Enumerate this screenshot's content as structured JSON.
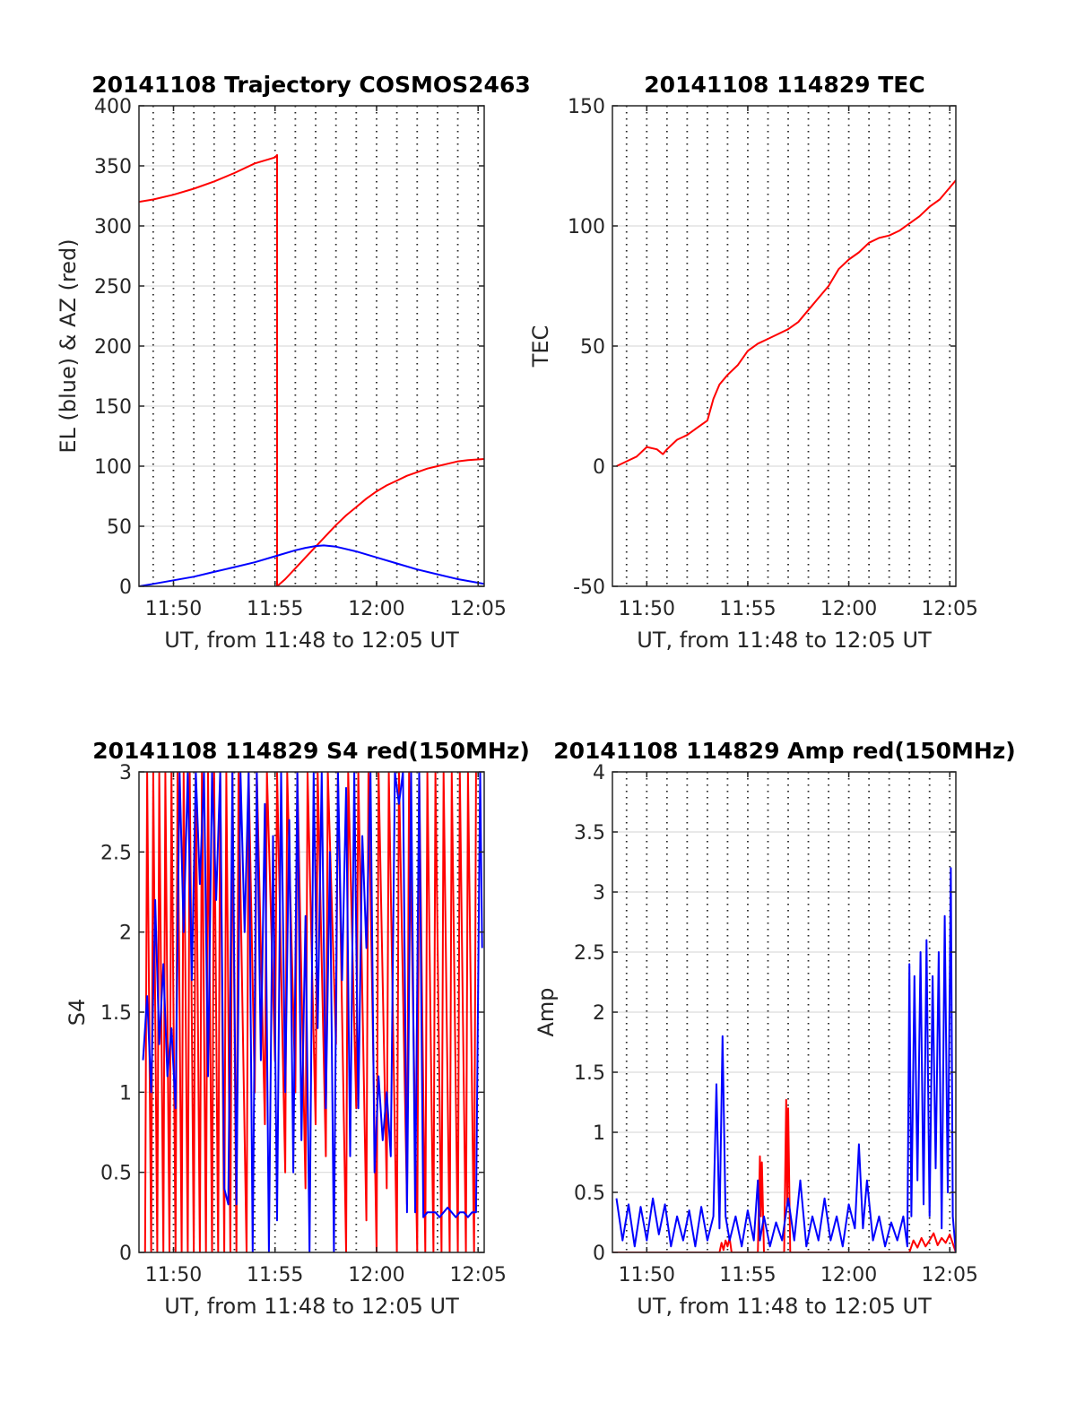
{
  "chart_data": [
    {
      "type": "line",
      "title": "20141108 Trajectory COSMOS2463",
      "xlabel": "UT, from 11:48 to 12:05 UT",
      "ylabel": "EL (blue) & AZ (red)",
      "xlim": [
        708.3,
        725.3
      ],
      "ylim": [
        0,
        400
      ],
      "x_ticks": [
        710,
        715,
        720,
        725
      ],
      "x_tick_labels": [
        "11:50",
        "11:55",
        "12:00",
        "12:05"
      ],
      "y_ticks": [
        0,
        50,
        100,
        150,
        200,
        250,
        300,
        350,
        400
      ],
      "y_tick_labels": [
        "0",
        "50",
        "100",
        "150",
        "200",
        "250",
        "300",
        "350",
        "400"
      ],
      "vertical_dotted_x": [
        709,
        710,
        711,
        712,
        713,
        714,
        715,
        716,
        717,
        718,
        719,
        720,
        721,
        722,
        723,
        724,
        725
      ],
      "grid": "horizontal major",
      "series": [
        {
          "color": "#ff0000",
          "x": [
            708.3,
            709,
            710,
            711,
            712,
            713,
            714,
            715,
            715.1,
            715.1,
            715.5,
            716,
            716.5,
            717,
            717.5,
            718,
            718.5,
            719,
            719.5,
            720,
            720.5,
            721,
            721.5,
            722,
            722.5,
            723,
            723.5,
            724,
            724.5,
            725.3
          ],
          "y": [
            320,
            322,
            326,
            331,
            337,
            344,
            352,
            357,
            359,
            0,
            6,
            15,
            24,
            33,
            42,
            51,
            59,
            66,
            73,
            79,
            84,
            88,
            92,
            95,
            98,
            100,
            102,
            104,
            105,
            106
          ]
        },
        {
          "color": "#0000ff",
          "x": [
            708.3,
            709,
            710,
            711,
            712,
            713,
            714,
            715,
            716,
            716.5,
            717,
            717.4,
            718,
            719,
            720,
            721,
            722,
            723,
            724,
            725.3
          ],
          "y": [
            0,
            2,
            5,
            8,
            12,
            16,
            20,
            25,
            30,
            32,
            33.5,
            34,
            33,
            29,
            24,
            19,
            14,
            10,
            6,
            2
          ]
        }
      ]
    },
    {
      "type": "line",
      "title": "20141108 114829 TEC",
      "xlabel": "UT, from 11:48 to 12:05 UT",
      "ylabel": "TEC",
      "xlim": [
        708.3,
        725.3
      ],
      "ylim": [
        -50,
        150
      ],
      "x_ticks": [
        710,
        715,
        720,
        725
      ],
      "x_tick_labels": [
        "11:50",
        "11:55",
        "12:00",
        "12:05"
      ],
      "y_ticks": [
        -50,
        0,
        50,
        100,
        150
      ],
      "y_tick_labels": [
        "-50",
        "0",
        "50",
        "100",
        "150"
      ],
      "vertical_dotted_x": [
        709,
        710,
        711,
        712,
        713,
        714,
        715,
        716,
        717,
        718,
        719,
        720,
        721,
        722,
        723,
        724,
        725
      ],
      "grid": "horizontal major",
      "series": [
        {
          "color": "#ff0000",
          "x": [
            708.5,
            709,
            709.5,
            710,
            710.5,
            710.8,
            711,
            711.5,
            712,
            712.5,
            713,
            713.3,
            713.6,
            714,
            714.5,
            715,
            715.5,
            716,
            716.5,
            717,
            717.5,
            718,
            718.5,
            719,
            719.5,
            720,
            720.5,
            721,
            721.5,
            722,
            722.5,
            723,
            723.5,
            724,
            724.5,
            725.3
          ],
          "y": [
            0,
            2,
            4,
            8,
            7,
            5,
            7,
            11,
            13,
            16,
            19,
            28,
            34,
            38,
            42,
            48,
            51,
            53,
            55,
            57,
            60,
            65,
            70,
            75,
            82,
            86,
            89,
            93,
            95,
            96,
            98,
            101,
            104,
            108,
            111,
            119
          ]
        }
      ]
    },
    {
      "type": "line",
      "title": "20141108 114829 S4 red(150MHz)",
      "xlabel": "UT, from 11:48 to 12:05 UT",
      "ylabel": "S4",
      "xlim": [
        708.3,
        725.3
      ],
      "ylim": [
        0,
        3
      ],
      "x_ticks": [
        710,
        715,
        720,
        725
      ],
      "x_tick_labels": [
        "11:50",
        "11:55",
        "12:00",
        "12:05"
      ],
      "y_ticks": [
        0,
        0.5,
        1,
        1.5,
        2,
        2.5,
        3
      ],
      "y_tick_labels": [
        "0",
        "0.5",
        "1",
        "1.5",
        "2",
        "2.5",
        "3"
      ],
      "vertical_dotted_x": [
        709,
        710,
        711,
        712,
        713,
        714,
        715,
        716,
        717,
        718,
        719,
        720,
        721,
        722,
        723,
        724,
        725
      ],
      "grid": "horizontal major",
      "series": [
        {
          "color": "#ff0000",
          "x": [
            708.6,
            708.7,
            708.9,
            709.0,
            709.2,
            709.3,
            709.5,
            709.6,
            709.8,
            709.9,
            710.1,
            710.2,
            710.4,
            710.5,
            710.7,
            710.8,
            711.0,
            711.1,
            711.3,
            711.4,
            711.6,
            711.7,
            711.9,
            712.0,
            712.2,
            712.3,
            712.5,
            712.6,
            712.8,
            712.9,
            713.1,
            713.2,
            713.6,
            713.7,
            714.0,
            714.1,
            714.5,
            714.6,
            715.0,
            715.1,
            715.5,
            715.6,
            716.0,
            716.1,
            716.5,
            716.6,
            717.0,
            717.1,
            717.5,
            717.6,
            718.0,
            718.1,
            718.5,
            718.6,
            719.0,
            719.1,
            719.5,
            719.6,
            720.0,
            720.1,
            720.5,
            720.6,
            721.0,
            721.1,
            721.5,
            721.6,
            722.0,
            722.1,
            722.4,
            722.5,
            722.8,
            722.9,
            723.2,
            723.3,
            723.6,
            723.7,
            724.0,
            724.1,
            724.4,
            724.5,
            724.8,
            724.9
          ],
          "y": [
            0,
            3,
            0,
            3,
            0,
            3,
            0,
            3,
            0,
            3,
            0,
            3,
            0,
            3,
            0,
            3,
            0,
            3,
            0,
            3,
            0,
            3,
            0,
            3,
            0,
            3,
            0,
            3,
            0,
            3,
            0,
            3,
            0,
            3,
            1.0,
            3,
            0.8,
            3,
            1.2,
            3,
            0.5,
            3,
            1.0,
            3,
            0.4,
            3,
            0.8,
            3,
            0.6,
            3,
            1.3,
            3,
            0,
            3,
            0.9,
            3,
            0.2,
            3,
            0,
            3,
            0.4,
            3,
            0,
            3,
            0.3,
            3,
            0,
            3,
            0,
            3,
            0,
            3,
            0,
            3,
            0,
            3,
            0,
            3,
            0,
            3,
            0,
            3
          ]
        },
        {
          "color": "#0000ff",
          "x": [
            708.5,
            708.7,
            708.9,
            709.1,
            709.3,
            709.5,
            709.7,
            709.9,
            710.1,
            710.3,
            710.5,
            710.7,
            710.9,
            711.1,
            711.3,
            711.5,
            711.7,
            711.9,
            712.1,
            712.3,
            712.5,
            712.7,
            712.9,
            713.1,
            713.3,
            713.5,
            713.7,
            713.9,
            714.1,
            714.3,
            714.5,
            714.7,
            714.9,
            715.1,
            715.3,
            715.5,
            715.7,
            715.9,
            716.1,
            716.3,
            716.5,
            716.7,
            716.9,
            717.1,
            717.3,
            717.5,
            717.7,
            717.9,
            718.1,
            718.3,
            718.5,
            718.7,
            718.9,
            719.1,
            719.3,
            719.5,
            719.7,
            719.9,
            720.1,
            720.3,
            720.5,
            720.7,
            720.9,
            721.1,
            721.3,
            721.5,
            721.7,
            721.9,
            722.1,
            722.3,
            722.5,
            722.7,
            722.9,
            723.1,
            723.3,
            723.5,
            723.7,
            723.9,
            724.1,
            724.3,
            724.5,
            724.7,
            724.9,
            725.1,
            725.2
          ],
          "y": [
            1.2,
            1.6,
            1.0,
            2.2,
            1.3,
            1.8,
            1.1,
            1.4,
            0.9,
            3.0,
            2.0,
            3.0,
            1.7,
            3.0,
            2.3,
            3.0,
            1.1,
            3.0,
            2.2,
            3.0,
            0.4,
            0.3,
            3.0,
            0.3,
            3.0,
            2.0,
            3.0,
            0,
            3.0,
            1.2,
            2.8,
            0,
            2.6,
            0.2,
            3.0,
            1.0,
            2.7,
            0.5,
            3.0,
            0.7,
            2.1,
            0,
            3.0,
            1.4,
            3.0,
            0.9,
            2.5,
            0,
            3.0,
            1.7,
            2.9,
            0.6,
            3.0,
            0.9,
            2.6,
            1.9,
            3.0,
            0.5,
            1.1,
            0.7,
            1.0,
            0.6,
            3.0,
            2.8,
            3.0,
            0.25,
            3.0,
            0.25,
            3.0,
            0.22,
            0.25,
            0.25,
            0.25,
            0.22,
            0.25,
            0.28,
            0.25,
            0.22,
            0.25,
            0.25,
            0.22,
            0.25,
            0.25,
            3.0,
            1.9
          ]
        }
      ]
    },
    {
      "type": "line",
      "title": "20141108 114829 Amp red(150MHz)",
      "xlabel": "UT, from 11:48 to 12:05 UT",
      "ylabel": "Amp",
      "xlim": [
        708.3,
        725.3
      ],
      "ylim": [
        0,
        4
      ],
      "x_ticks": [
        710,
        715,
        720,
        725
      ],
      "x_tick_labels": [
        "11:50",
        "11:55",
        "12:00",
        "12:05"
      ],
      "y_ticks": [
        0,
        0.5,
        1,
        1.5,
        2,
        2.5,
        3,
        3.5,
        4
      ],
      "y_tick_labels": [
        "0",
        "0.5",
        "1",
        "1.5",
        "2",
        "2.5",
        "3",
        "3.5",
        "4"
      ],
      "vertical_dotted_x": [
        709,
        710,
        711,
        712,
        713,
        714,
        715,
        716,
        717,
        718,
        719,
        720,
        721,
        722,
        723,
        724,
        725
      ],
      "grid": "horizontal major",
      "series": [
        {
          "color": "#ff0000",
          "x": [
            708.3,
            713.6,
            713.7,
            713.8,
            713.9,
            714.0,
            714.1,
            714.2,
            715.5,
            715.6,
            715.65,
            715.7,
            715.8,
            716.8,
            716.9,
            716.95,
            717.0,
            717.1,
            723.0,
            723.2,
            723.4,
            723.6,
            723.8,
            724.0,
            724.2,
            724.4,
            724.6,
            724.8,
            725.0,
            725.3
          ],
          "y": [
            0,
            0,
            0.08,
            0.02,
            0.1,
            0.05,
            0.12,
            0,
            0,
            0.8,
            0.3,
            0.75,
            0,
            0,
            1.27,
            0.4,
            1.2,
            0,
            0,
            0.1,
            0.04,
            0.12,
            0.05,
            0.1,
            0.16,
            0.06,
            0.12,
            0.08,
            0.15,
            0
          ]
        },
        {
          "color": "#0000ff",
          "x": [
            708.5,
            708.8,
            709.1,
            709.4,
            709.7,
            710.0,
            710.3,
            710.6,
            710.9,
            711.2,
            711.5,
            711.8,
            712.1,
            712.4,
            712.7,
            713.0,
            713.3,
            713.45,
            713.6,
            713.75,
            713.9,
            714.1,
            714.4,
            714.7,
            715.0,
            715.3,
            715.5,
            715.6,
            715.8,
            716.1,
            716.4,
            716.7,
            717.0,
            717.3,
            717.6,
            717.9,
            718.2,
            718.5,
            718.8,
            719.1,
            719.4,
            719.7,
            720.0,
            720.3,
            720.5,
            720.7,
            720.9,
            721.2,
            721.5,
            721.8,
            722.1,
            722.4,
            722.7,
            722.9,
            723.0,
            723.1,
            723.25,
            723.4,
            723.55,
            723.7,
            723.85,
            724.0,
            724.15,
            724.3,
            724.45,
            724.6,
            724.75,
            724.9,
            725.05,
            725.15,
            725.3
          ],
          "y": [
            0.45,
            0.1,
            0.4,
            0.05,
            0.38,
            0.1,
            0.45,
            0.15,
            0.4,
            0.05,
            0.3,
            0.1,
            0.35,
            0.05,
            0.38,
            0.1,
            0.3,
            1.4,
            0.2,
            1.8,
            0.3,
            0.1,
            0.3,
            0.05,
            0.35,
            0.1,
            0.6,
            0.1,
            0.3,
            0.05,
            0.25,
            0.1,
            0.45,
            0.1,
            0.6,
            0.05,
            0.3,
            0.1,
            0.45,
            0.1,
            0.3,
            0.05,
            0.4,
            0.2,
            0.9,
            0.2,
            0.6,
            0.1,
            0.3,
            0.05,
            0.25,
            0.1,
            0.3,
            0.05,
            2.4,
            0.3,
            2.3,
            0.6,
            2.5,
            0.4,
            2.6,
            0.3,
            2.3,
            0.7,
            2.5,
            0.2,
            2.8,
            0.5,
            3.2,
            0.3,
            0
          ]
        }
      ]
    }
  ]
}
